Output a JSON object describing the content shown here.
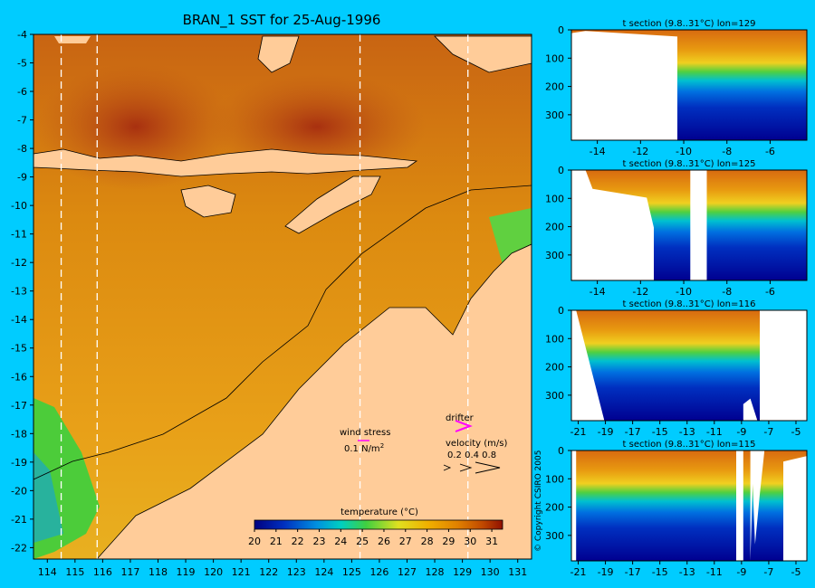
{
  "title": "BRAN_1 SST for 25-Aug-1996",
  "copyright": "© Copyright CSIRO 2005",
  "colors": {
    "background": "#00ccff",
    "land": "#ffcc99",
    "section_mask": "#ffffff"
  },
  "chart_data": [
    {
      "type": "heatmap",
      "name_in_image": "BRAN_1 SST for 25-Aug-1996",
      "x_ticks": [
        "114",
        "115",
        "116",
        "117",
        "118",
        "119",
        "120",
        "121",
        "122",
        "123",
        "124",
        "125",
        "126",
        "127",
        "128",
        "129",
        "130",
        "131"
      ],
      "y_ticks": [
        "-4",
        "-5",
        "-6",
        "-7",
        "-8",
        "-9",
        "-10",
        "-11",
        "-12",
        "-13",
        "-14",
        "-15",
        "-16",
        "-17",
        "-18",
        "-19",
        "-20",
        "-21",
        "-22"
      ],
      "xlim": [
        113.5,
        131.5
      ],
      "ylim": [
        -22.4,
        -4
      ],
      "section_longitudes": [
        114.5,
        115.8,
        125.3,
        129.2
      ],
      "colorbar": {
        "label": "temperature (°C)",
        "ticks": [
          "20",
          "21",
          "22",
          "23",
          "24",
          "25",
          "26",
          "27",
          "28",
          "29",
          "30",
          "31"
        ],
        "range": [
          20,
          31.5
        ]
      },
      "annotations": {
        "wind_stress_label": "wind stress",
        "wind_stress_scale": "0.1 N/m",
        "wind_stress_exp": "2",
        "drifter_label": "drifter",
        "velocity_label": "velocity (m/s)",
        "velocity_values": "0.2 0.4 0.8"
      }
    },
    {
      "type": "heatmap",
      "title": "t section (9.8..31°C) lon=129",
      "x_ticks": [
        "-14",
        "-12",
        "-10",
        "-8",
        "-6"
      ],
      "xlim": [
        -15.2,
        -4.3
      ],
      "y_ticks": [
        "0",
        "100",
        "200",
        "300"
      ],
      "ylim": [
        0,
        390
      ]
    },
    {
      "type": "heatmap",
      "title": "t section (9.8..31°C) lon=125",
      "x_ticks": [
        "-14",
        "-12",
        "-10",
        "-8",
        "-6"
      ],
      "xlim": [
        -15.2,
        -4.3
      ],
      "y_ticks": [
        "0",
        "100",
        "200",
        "300"
      ],
      "ylim": [
        0,
        390
      ]
    },
    {
      "type": "heatmap",
      "title": "t section (9.8..31°C) lon=116",
      "x_ticks": [
        "-21",
        "-19",
        "-17",
        "-15",
        "-13",
        "-11",
        "-9",
        "-7",
        "-5"
      ],
      "xlim": [
        -21.5,
        -4.2
      ],
      "y_ticks": [
        "0",
        "100",
        "200",
        "300"
      ],
      "ylim": [
        0,
        390
      ]
    },
    {
      "type": "heatmap",
      "title": "t section (9.8..31°C) lon=115",
      "x_ticks": [
        "-21",
        "-19",
        "-17",
        "-15",
        "-13",
        "-11",
        "-9",
        "-7",
        "-5"
      ],
      "xlim": [
        -21.5,
        -4.2
      ],
      "y_ticks": [
        "0",
        "100",
        "200",
        "300"
      ],
      "ylim": [
        0,
        390
      ]
    }
  ]
}
